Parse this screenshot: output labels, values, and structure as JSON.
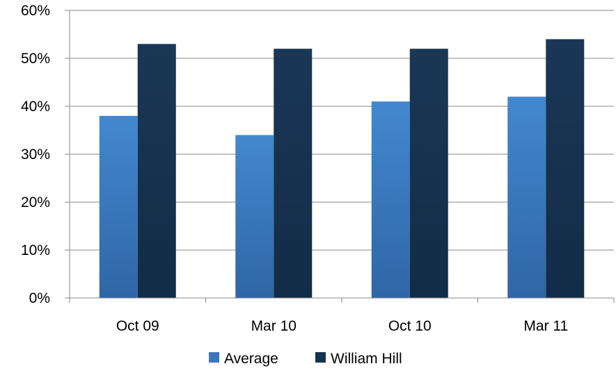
{
  "chart_data": {
    "type": "bar",
    "categories": [
      "Oct 09",
      "Mar 10",
      "Oct 10",
      "Mar 11"
    ],
    "series": [
      {
        "name": "Average",
        "values": [
          38,
          34,
          41,
          42
        ],
        "color": "#3a78bd"
      },
      {
        "name": "William Hill",
        "values": [
          53,
          52,
          52,
          54
        ],
        "color": "#17324f"
      }
    ],
    "ylim": [
      0,
      60
    ],
    "yticks": [
      0,
      10,
      20,
      30,
      40,
      50,
      60
    ],
    "ytick_labels": [
      "0%",
      "10%",
      "20%",
      "30%",
      "40%",
      "50%",
      "60%"
    ],
    "grid": true,
    "legend": "bottom"
  }
}
